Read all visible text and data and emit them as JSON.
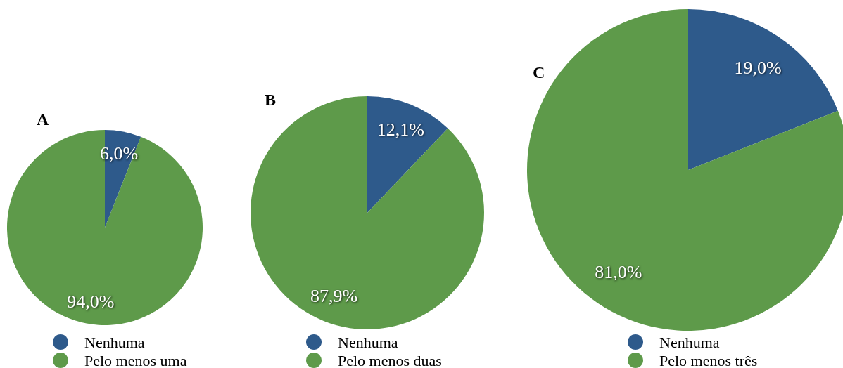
{
  "chart_data": [
    {
      "type": "pie",
      "title": "A",
      "categories": [
        "Nenhuma",
        "Pelo menos uma"
      ],
      "values": [
        6.0,
        94.0
      ],
      "value_labels": [
        "6,0%",
        "94,0%"
      ],
      "colors": [
        "#2e5a8b",
        "#5e9a4a"
      ],
      "legend": "bottom"
    },
    {
      "type": "pie",
      "title": "B",
      "categories": [
        "Nenhuma",
        "Pelo menos duas"
      ],
      "values": [
        12.1,
        87.9
      ],
      "value_labels": [
        "12,1%",
        "87,9%"
      ],
      "colors": [
        "#2e5a8b",
        "#5e9a4a"
      ],
      "legend": "bottom"
    },
    {
      "type": "pie",
      "title": "C",
      "categories": [
        "Nenhuma",
        "Pelo menos três"
      ],
      "values": [
        19.0,
        81.0
      ],
      "value_labels": [
        "19,0%",
        "81,0%"
      ],
      "colors": [
        "#2e5a8b",
        "#5e9a4a"
      ],
      "legend": "bottom"
    }
  ]
}
